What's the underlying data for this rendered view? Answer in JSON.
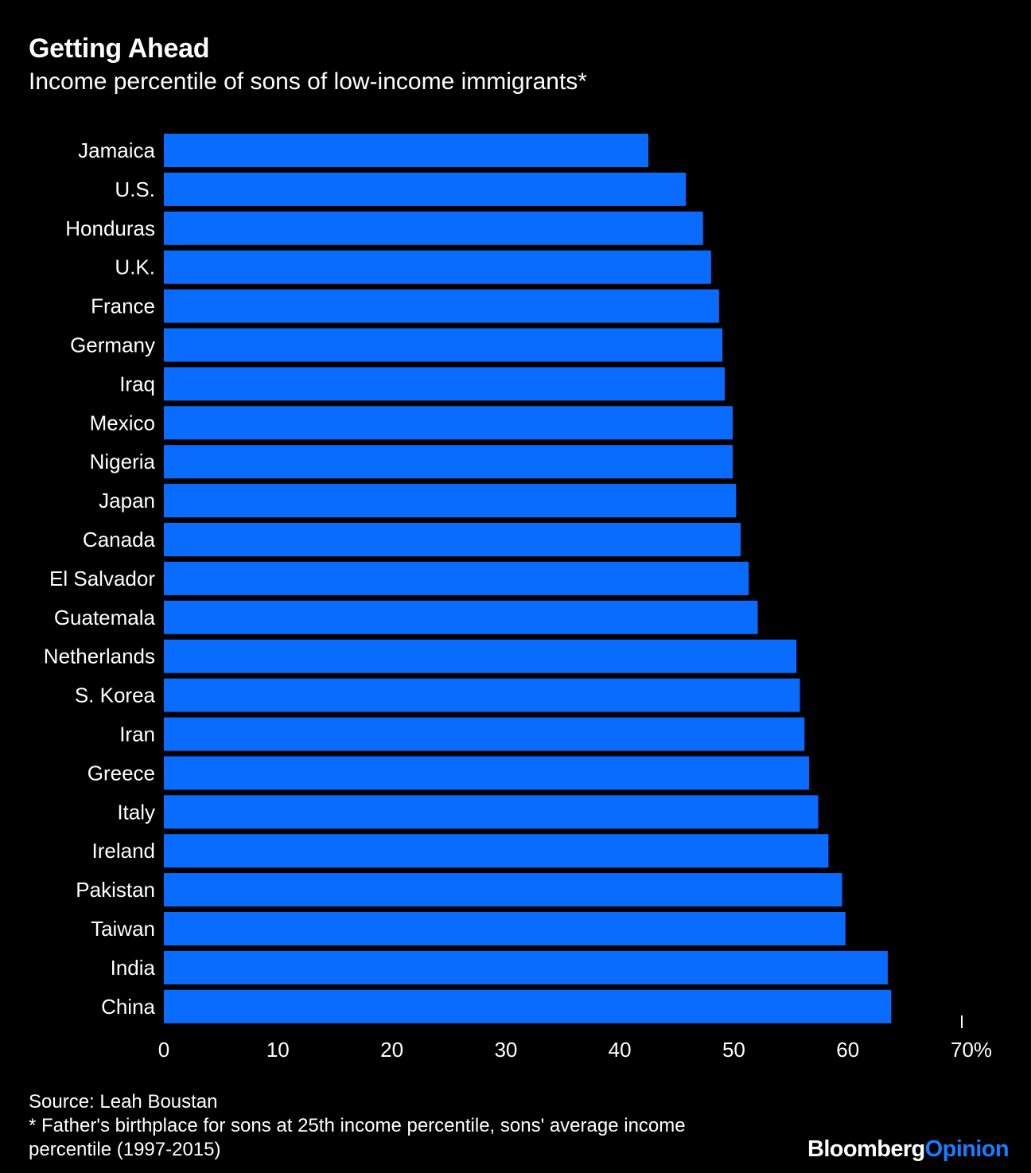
{
  "header": {
    "title": "Getting Ahead",
    "subtitle": "Income percentile of sons of low-income immigrants*"
  },
  "footer": {
    "source": "Source: Leah Boustan",
    "note_line1": "* Father's birthplace for sons at 25th income percentile, sons' average income",
    "note_line2": "percentile (1997-2015)"
  },
  "logo": {
    "brand": "Bloomberg",
    "section": "Opinion"
  },
  "colors": {
    "background": "#000000",
    "bar": "#0a6cff",
    "text": "#ffffff",
    "logo_accent": "#1a7cff"
  },
  "chart_data": {
    "type": "bar",
    "orientation": "horizontal",
    "categories": [
      "Jamaica",
      "U.S.",
      "Honduras",
      "U.K.",
      "France",
      "Germany",
      "Iraq",
      "Mexico",
      "Nigeria",
      "Japan",
      "Canada",
      "El Salvador",
      "Guatemala",
      "Netherlands",
      "S. Korea",
      "Iran",
      "Greece",
      "Italy",
      "Ireland",
      "Pakistan",
      "Taiwan",
      "India",
      "China"
    ],
    "values": [
      42.5,
      45.8,
      47.3,
      48.0,
      48.7,
      49.0,
      49.2,
      49.9,
      49.9,
      50.2,
      50.6,
      51.3,
      52.1,
      55.5,
      55.8,
      56.2,
      56.6,
      57.4,
      58.3,
      59.5,
      59.8,
      63.5,
      63.8
    ],
    "xlim": [
      0,
      70
    ],
    "xticks": [
      0,
      10,
      20,
      30,
      40,
      50,
      60,
      70
    ],
    "xtick_labels": [
      "0",
      "10",
      "20",
      "30",
      "40",
      "50",
      "60",
      "70%"
    ],
    "grid": false,
    "legend": "none"
  }
}
